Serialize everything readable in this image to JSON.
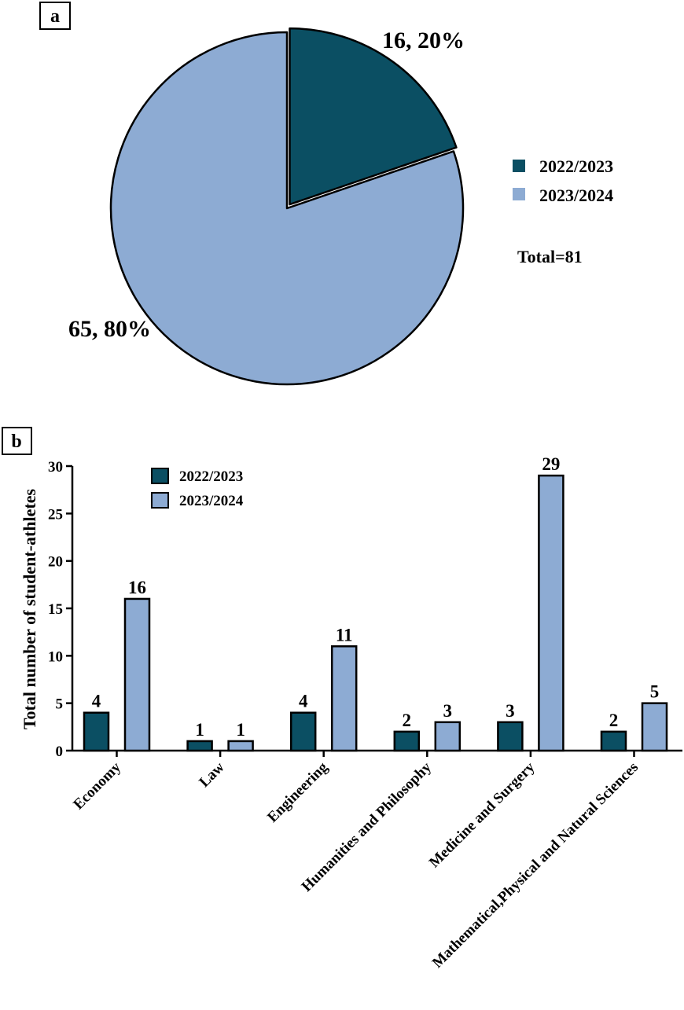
{
  "colors": {
    "series_2022": "#0b4f63",
    "series_2023": "#8dabd3",
    "stroke": "#000000"
  },
  "chart_data": [
    {
      "panel": "a",
      "type": "pie",
      "labels": [
        "2022/2023",
        "2023/2024"
      ],
      "values": [
        16,
        65
      ],
      "percents": [
        20,
        80
      ],
      "slice_labels": [
        "16, 20%",
        "65, 80%"
      ],
      "legend": [
        "2022/2023",
        "2023/2024"
      ],
      "legend_position": "right",
      "annotation": "Total=81",
      "exploded_slice": "2022/2023"
    },
    {
      "panel": "b",
      "type": "bar",
      "categories": [
        "Economy",
        "Law",
        "Engineering",
        "Humanities and Philosophy",
        "Medicine and Surgery",
        "Mathematical,Physical and Natural Sciences"
      ],
      "series": [
        {
          "name": "2022/2023",
          "values": [
            4,
            1,
            4,
            2,
            3,
            2
          ]
        },
        {
          "name": "2023/2024",
          "values": [
            16,
            1,
            11,
            3,
            29,
            5
          ]
        }
      ],
      "ylabel": "Total number of student-athletes",
      "xlabel": "",
      "ylim": [
        0,
        30
      ],
      "yticks": [
        0,
        5,
        10,
        15,
        20,
        25,
        30
      ],
      "legend_position": "top-left",
      "grid": false
    }
  ]
}
